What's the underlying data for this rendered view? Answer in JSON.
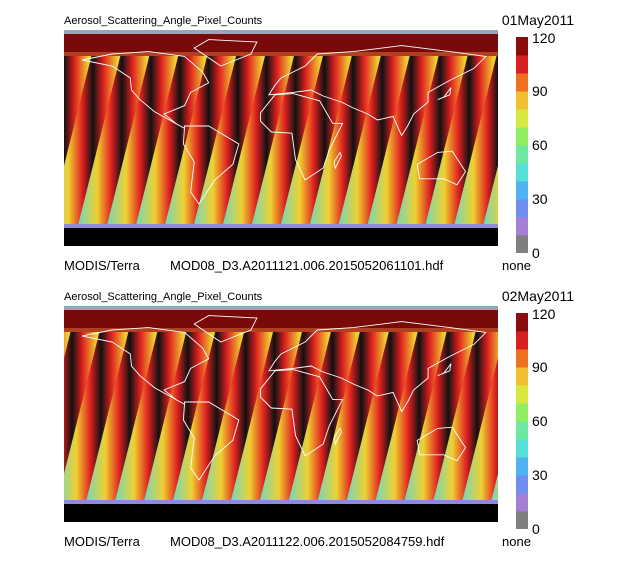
{
  "panels": [
    {
      "title": "Aerosol_Scattering_Angle_Pixel_Counts",
      "date": "01May2011",
      "satellite": "MODIS/Terra",
      "file": "MOD08_D3.A2011121.006.2015052061101.hdf",
      "units": "none",
      "band_count": 16
    },
    {
      "title": "Aerosol_Scattering_Angle_Pixel_Counts",
      "date": "02May2011",
      "satellite": "MODIS/Terra",
      "file": "MOD08_D3.A2011122.006.2015052084759.hdf",
      "units": "none",
      "band_count": 16
    }
  ],
  "colorbar": {
    "min": 0,
    "max": 120,
    "ticks": [
      "120",
      "90",
      "60",
      "30",
      "0"
    ],
    "colors": [
      "#7f7f7f",
      "#a37fd6",
      "#6f8ff0",
      "#4fb3f0",
      "#56e0d8",
      "#6ee8a0",
      "#90ec60",
      "#d8e840",
      "#f0c030",
      "#f07020",
      "#d82020",
      "#8a0c0c"
    ]
  },
  "map_colors": {
    "band_core": "#111111",
    "band_inner": "#e02020",
    "band_mid": "#f0d030",
    "background": "#6fd8c0",
    "north_cap": "#7a0a0a",
    "south_cap": "#000000",
    "coastline": "#ffffff"
  }
}
